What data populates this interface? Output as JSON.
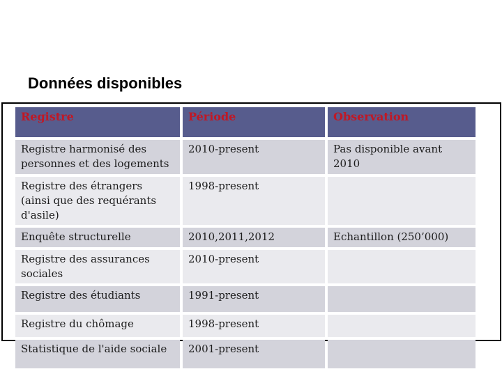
{
  "title": "Données disponibles",
  "table": {
    "headers": [
      "Registre",
      "Période",
      "Observation"
    ],
    "rows": [
      {
        "registre": "Registre harmonisé des personnes et des logements",
        "periode": "2010-present",
        "observation": "Pas disponible avant 2010"
      },
      {
        "registre": "Registre des étrangers (ainsi que des requérants d'asile)",
        "periode": "1998-present",
        "observation": ""
      },
      {
        "registre": "Enquête structurelle",
        "periode": "2010,2011,2012",
        "observation": "Echantillon (250’000)"
      },
      {
        "registre": "Registre des assurances sociales",
        "periode": "2010-present",
        "observation": ""
      },
      {
        "registre": "Registre des étudiants",
        "periode": "1991-present",
        "observation": ""
      },
      {
        "registre": "Registre du chômage",
        "periode": "1998-present",
        "observation": ""
      },
      {
        "registre": "Statistique de l'aide sociale",
        "periode": "2001-present",
        "observation": ""
      }
    ]
  },
  "colors": {
    "header_bg": "#575c8d",
    "header_text": "#c01825",
    "row_dark": "#d3d3db",
    "row_light": "#eaeaee",
    "body_text": "#1c1c1c",
    "frame_border": "#000000",
    "title_text": "#000000",
    "background": "#ffffff"
  }
}
